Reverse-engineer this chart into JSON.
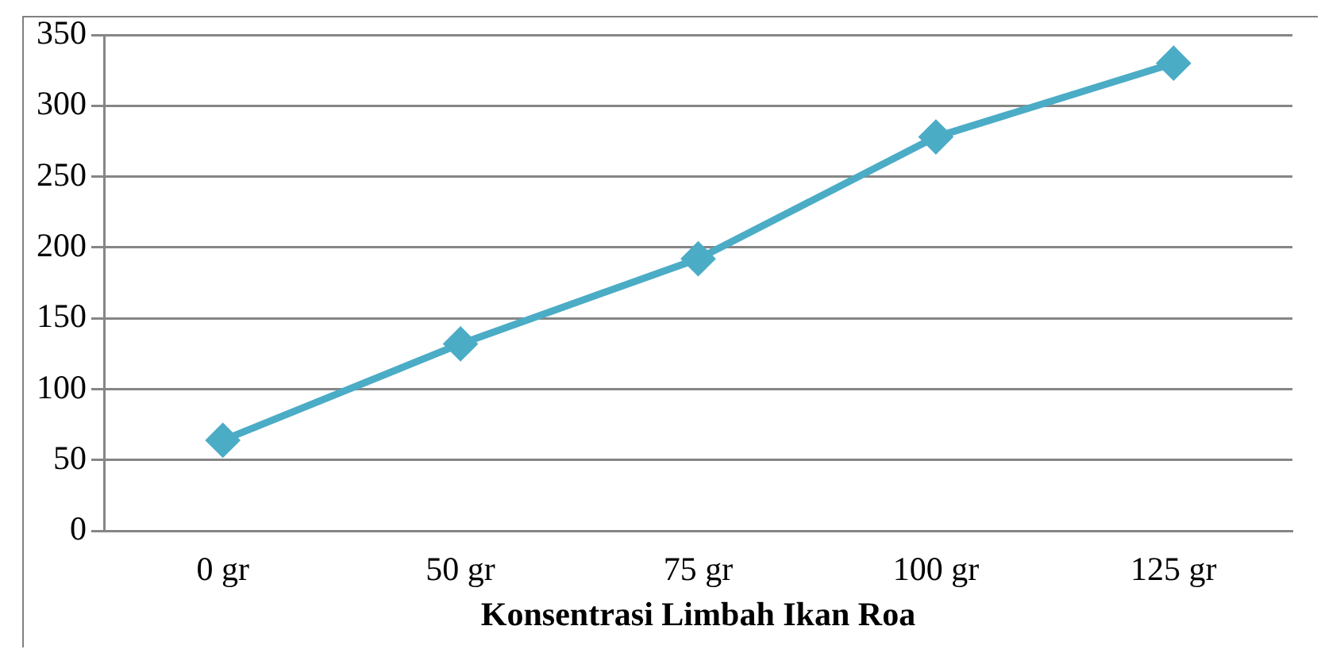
{
  "chart_data": {
    "type": "line",
    "xlabel": "Konsentrasi Limbah Ikan Roa",
    "categories": [
      "0 gr",
      "50 gr",
      "75 gr",
      "100 gr",
      "125 gr"
    ],
    "series": [
      {
        "color": "#4bacc6",
        "values": [
          64,
          132,
          192,
          278,
          330
        ]
      }
    ],
    "ylim": [
      0,
      350
    ],
    "yticks": [
      0,
      50,
      100,
      150,
      200,
      250,
      300,
      350
    ],
    "grid": "y",
    "legend": false,
    "marker": "diamond",
    "line_style": "solid"
  }
}
